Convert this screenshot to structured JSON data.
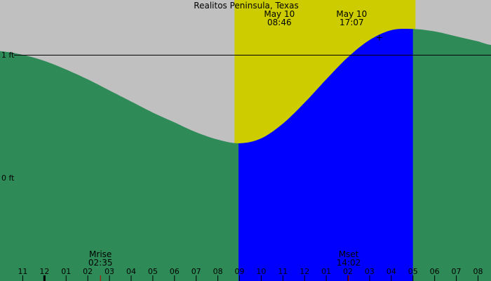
{
  "chart_data": {
    "type": "area",
    "title": "Realitos Peninsula, Texas",
    "sunrise": {
      "date": "May 10",
      "time": "08:46",
      "hour": 8.767
    },
    "sunset": {
      "date": "May 10",
      "time": "17:07",
      "hour": 17.117
    },
    "y_axis": {
      "unit": "ft",
      "ticks": [
        {
          "label": "1 ft",
          "value": 1
        },
        {
          "label": "0 ft",
          "value": 0
        }
      ]
    },
    "x_axis": {
      "range_hours": [
        -2.05,
        20.6
      ],
      "ticks": [
        {
          "label": "11",
          "hour": -1
        },
        {
          "label": "12",
          "hour": 0
        },
        {
          "label": "01",
          "hour": 1
        },
        {
          "label": "02",
          "hour": 2
        },
        {
          "label": "03",
          "hour": 3
        },
        {
          "label": "04",
          "hour": 4
        },
        {
          "label": "05",
          "hour": 5
        },
        {
          "label": "06",
          "hour": 6
        },
        {
          "label": "07",
          "hour": 7
        },
        {
          "label": "08",
          "hour": 8
        },
        {
          "label": "09",
          "hour": 9
        },
        {
          "label": "10",
          "hour": 10
        },
        {
          "label": "11",
          "hour": 11
        },
        {
          "label": "12",
          "hour": 12
        },
        {
          "label": "01",
          "hour": 13
        },
        {
          "label": "02",
          "hour": 14
        },
        {
          "label": "03",
          "hour": 15
        },
        {
          "label": "04",
          "hour": 16
        },
        {
          "label": "05",
          "hour": 17
        },
        {
          "label": "06",
          "hour": 18
        },
        {
          "label": "07",
          "hour": 19
        },
        {
          "label": "08",
          "hour": 20
        }
      ]
    },
    "moon": [
      {
        "label": "Mrise",
        "time": "02:35",
        "hour": 2.583
      },
      {
        "label": "Mset",
        "time": "14:02",
        "hour": 14.033
      }
    ],
    "rising_tide": {
      "start_hour": 8.95,
      "end_hour": 17.0
    },
    "tide_series": {
      "name": "",
      "x_hours": [
        -2.05,
        -1,
        0,
        1,
        2,
        3,
        4,
        5,
        6,
        7,
        8,
        9,
        10,
        11,
        12,
        13,
        14,
        15,
        16,
        17,
        18,
        19,
        20,
        20.6
      ],
      "heights_ft": [
        1.03,
        1.0,
        0.95,
        0.88,
        0.8,
        0.71,
        0.62,
        0.53,
        0.45,
        0.37,
        0.31,
        0.28,
        0.32,
        0.44,
        0.61,
        0.8,
        0.98,
        1.12,
        1.2,
        1.21,
        1.19,
        1.15,
        1.11,
        1.08
      ]
    },
    "colors": {
      "night": "#c0c0c0",
      "day": "#cccc00",
      "water": "#2e8b57",
      "rising_water": "#0000ff",
      "line": "#000000",
      "moon_tick": "#cc0000"
    },
    "marker": {
      "hour": 15.45,
      "height_ft": 1.14
    }
  }
}
